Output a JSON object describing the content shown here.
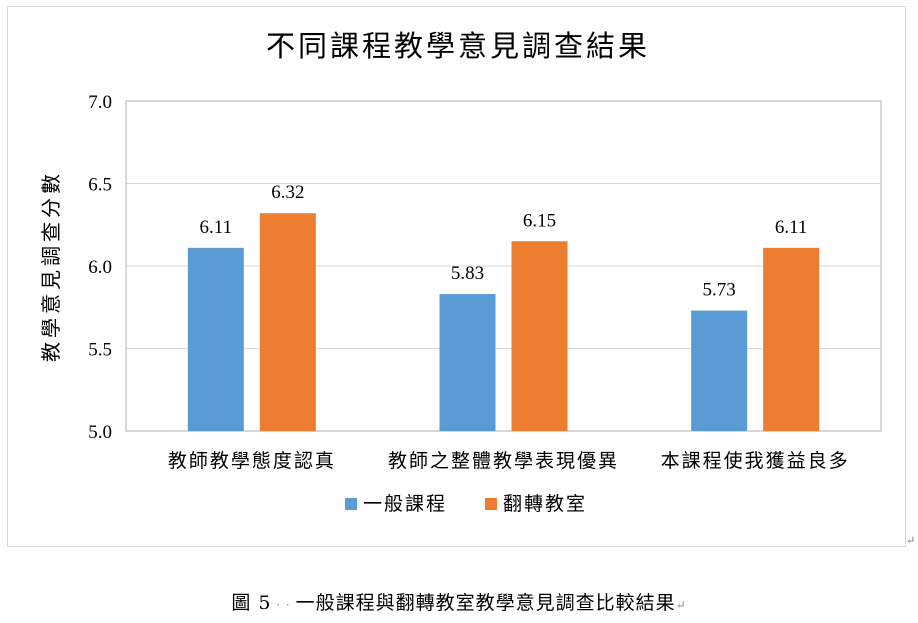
{
  "chart_data": {
    "type": "bar",
    "title": "不同課程教學意見調查結果",
    "ylabel": "教學意見調查分數",
    "xlabel": "",
    "categories": [
      "教師教學態度認真",
      "教師之整體教學表現優異",
      "本課程使我獲益良多"
    ],
    "series": [
      {
        "name": "一般課程",
        "values": [
          6.11,
          5.83,
          5.73
        ],
        "color": "#5b9bd5"
      },
      {
        "name": "翻轉教室",
        "values": [
          6.32,
          6.15,
          6.11
        ],
        "color": "#ed7d31"
      }
    ],
    "ylim": [
      5.0,
      7.0
    ],
    "yticks": [
      "5.0",
      "5.5",
      "6.0",
      "6.5",
      "7.0"
    ],
    "grid": true,
    "legend": "bottom"
  },
  "caption": {
    "prefix": "圖 5",
    "text": "一般課程與翻轉教室教學意見調查比較結果"
  }
}
